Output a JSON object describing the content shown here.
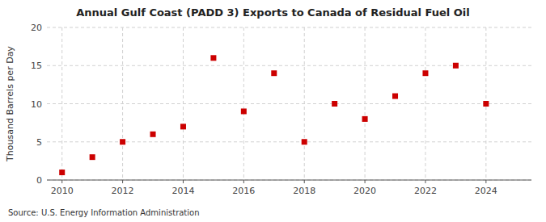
{
  "chart_data": {
    "type": "scatter",
    "title": "Annual Gulf Coast (PADD 3) Exports to Canada of Residual Fuel Oil",
    "ylabel": "Thousand Barrels per Day",
    "annotations": [
      "Source: U.S. Energy Information Administration"
    ],
    "x": [
      2010,
      2011,
      2012,
      2013,
      2014,
      2015,
      2016,
      2017,
      2018,
      2019,
      2020,
      2021,
      2022,
      2023,
      2024
    ],
    "values": [
      1,
      3,
      5,
      6,
      7,
      16,
      9,
      14,
      5,
      10,
      8,
      11,
      14,
      15,
      10
    ],
    "color": "#cc0000",
    "marker": "square",
    "xlim": [
      2009.5,
      2025.5
    ],
    "ylim": [
      0,
      20
    ],
    "xticks": [
      2010,
      2012,
      2014,
      2016,
      2018,
      2020,
      2022,
      2024
    ],
    "yticks": [
      0,
      5,
      10,
      15,
      20
    ],
    "grid": true
  }
}
